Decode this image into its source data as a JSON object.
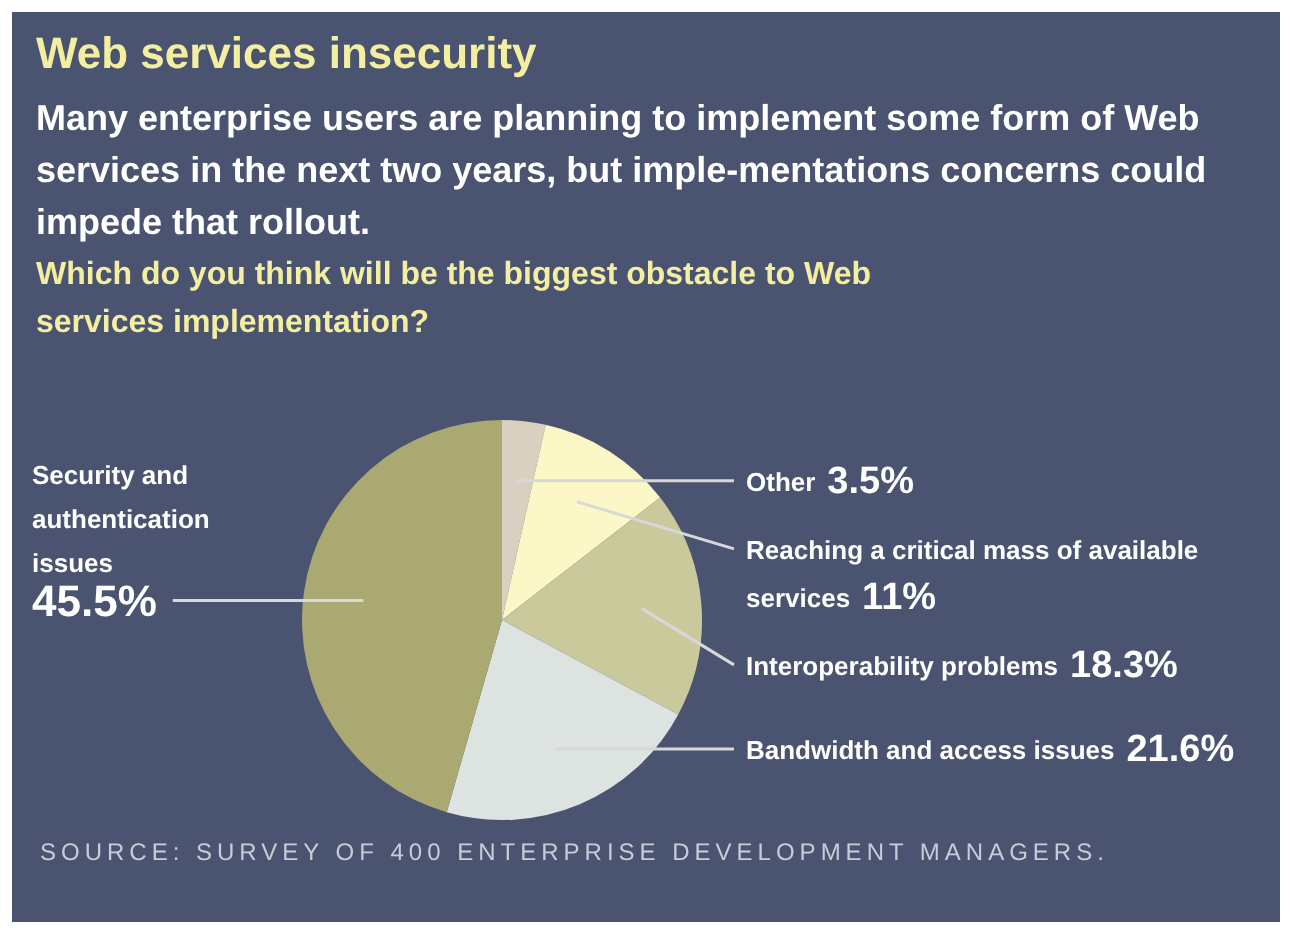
{
  "chart_data": {
    "type": "pie",
    "title": "Web services insecurity",
    "subtitle": "Many enterprise users are planning to implement some form of Web services in the next two years, but imple-mentations concerns could impede that rollout.",
    "annotations": [
      "Which do you think will be the biggest obstacle to Web services implementation?",
      "SOURCE: SURVEY OF 400 ENTERPRISE DEVELOPMENT MANAGERS."
    ],
    "categories": [
      "Other",
      "Reaching a critical mass of available services",
      "Interoperability problems",
      "Bandwidth and access issues",
      "Security and authentication issues"
    ],
    "values": [
      3.5,
      11,
      18.3,
      21.6,
      45.5
    ],
    "value_labels": [
      "3.5%",
      "11%",
      "18.3%",
      "21.6%",
      "45.5%"
    ],
    "colors": [
      "#d9d0c0",
      "#fcf7c6",
      "#c9c99b",
      "#dde3e1",
      "#aaa972"
    ],
    "legend": false
  }
}
